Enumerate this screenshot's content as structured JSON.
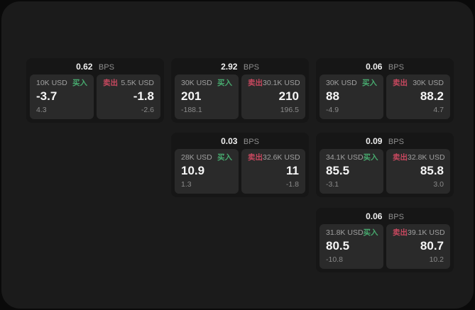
{
  "labels": {
    "buy": "买入",
    "sell": "卖出",
    "bps_unit": "BPS"
  },
  "colors": {
    "buy_accent": "#47a96e",
    "sell_accent": "#c7485f",
    "window_bg": "#1b1b1b",
    "card_bg": "#161616",
    "panel_bg": "#2a2a2a"
  },
  "cards": [
    {
      "bps": "0.62",
      "buy": {
        "amount": "10K USD",
        "value": "-3.7",
        "delta": "4.3"
      },
      "sell": {
        "amount": "5.5K USD",
        "value": "-1.8",
        "delta": "-2.6"
      }
    },
    {
      "bps": "2.92",
      "buy": {
        "amount": "30K USD",
        "value": "201",
        "delta": "-188.1"
      },
      "sell": {
        "amount": "30.1K USD",
        "value": "210",
        "delta": "196.5"
      }
    },
    {
      "bps": "0.06",
      "buy": {
        "amount": "30K USD",
        "value": "88",
        "delta": "-4.9"
      },
      "sell": {
        "amount": "30K USD",
        "value": "88.2",
        "delta": "4.7"
      }
    },
    {
      "bps": "0.03",
      "buy": {
        "amount": "28K USD",
        "value": "10.9",
        "delta": "1.3"
      },
      "sell": {
        "amount": "32.6K USD",
        "value": "11",
        "delta": "-1.8"
      }
    },
    {
      "bps": "0.09",
      "buy": {
        "amount": "34.1K USD",
        "value": "85.5",
        "delta": "-3.1"
      },
      "sell": {
        "amount": "32.8K USD",
        "value": "85.8",
        "delta": "3.0"
      }
    },
    {
      "bps": "0.06",
      "buy": {
        "amount": "31.8K USD",
        "value": "80.5",
        "delta": "-10.8"
      },
      "sell": {
        "amount": "39.1K USD",
        "value": "80.7",
        "delta": "10.2"
      }
    }
  ]
}
